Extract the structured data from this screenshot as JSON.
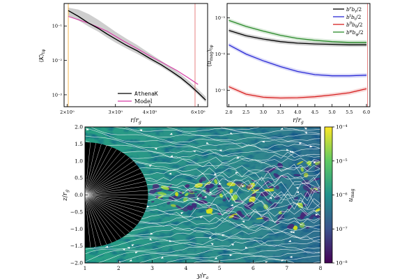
{
  "chart_data": [
    {
      "type": "line",
      "xlabel": "r/r_g",
      "ylabel": "⟨K⟩_{tφ}",
      "xscale": "log",
      "yscale": "log",
      "xlim": [
        1.95,
        6.5
      ],
      "ylim": [
        0.00045,
        0.45
      ],
      "xticks": [
        {
          "v": 2,
          "label": "2×10⁰"
        },
        {
          "v": 3,
          "label": "3×10⁰"
        },
        {
          "v": 4,
          "label": "4×10⁰"
        },
        {
          "v": 6,
          "label": "6×10⁰"
        }
      ],
      "yticks": [
        {
          "v": 0.1,
          "label": "10⁻¹"
        },
        {
          "v": 0.01,
          "label": "10⁻²"
        },
        {
          "v": 0.001,
          "label": "10⁻³"
        }
      ],
      "vlines": [
        {
          "x": 2.02,
          "color": "#f5a623"
        },
        {
          "x": 5.85,
          "color": "#e06060"
        }
      ],
      "legend_position": "bottom-left",
      "series": [
        {
          "name": "AthenaK",
          "color": "#000000",
          "label_style": "mono",
          "x": [
            2.02,
            2.2,
            2.4,
            2.6,
            2.8,
            3.0,
            3.3,
            3.6,
            4.0,
            4.4,
            4.8,
            5.2,
            5.6,
            6.0,
            6.4
          ],
          "y": [
            0.28,
            0.19,
            0.12,
            0.085,
            0.058,
            0.042,
            0.027,
            0.019,
            0.0115,
            0.0075,
            0.0048,
            0.0031,
            0.0019,
            0.00115,
            0.0007
          ],
          "band_lo": [
            0.2,
            0.145,
            0.095,
            0.068,
            0.046,
            0.033,
            0.022,
            0.0155,
            0.0098,
            0.0065,
            0.0042,
            0.0027,
            0.00165,
            0.001,
            0.0006
          ],
          "band_hi": [
            0.34,
            0.3,
            0.22,
            0.15,
            0.1,
            0.068,
            0.042,
            0.028,
            0.016,
            0.0098,
            0.0062,
            0.0039,
            0.0024,
            0.00145,
            0.00088
          ]
        },
        {
          "name": "Model",
          "color": "#d63aa5",
          "x": [
            2.02,
            2.4,
            2.8,
            3.2,
            3.6,
            4.0,
            4.5,
            5.0,
            5.5,
            6.0
          ],
          "y": [
            0.19,
            0.12,
            0.07,
            0.037,
            0.022,
            0.0135,
            0.0082,
            0.0052,
            0.0032,
            0.002
          ]
        }
      ]
    },
    {
      "type": "line",
      "xlabel": "r/r_g",
      "ylabel": "⟨u_mag⟩_{tφ}",
      "yscale": "log",
      "xlim": [
        1.95,
        6.1
      ],
      "ylim": [
        3.5e-06,
        0.0025
      ],
      "xticks": [
        {
          "v": 2.0,
          "label": "2.0"
        },
        {
          "v": 2.5,
          "label": "2.5"
        },
        {
          "v": 3.0,
          "label": "3.0"
        },
        {
          "v": 3.5,
          "label": "3.5"
        },
        {
          "v": 4.0,
          "label": "4.0"
        },
        {
          "v": 4.5,
          "label": "4.5"
        },
        {
          "v": 5.0,
          "label": "5.0"
        },
        {
          "v": 5.5,
          "label": "5.5"
        },
        {
          "v": 6.0,
          "label": "6.0"
        }
      ],
      "yticks": [
        {
          "v": 0.001,
          "label": "10⁻³"
        },
        {
          "v": 0.0001,
          "label": "10⁻⁴"
        },
        {
          "v": 1e-05,
          "label": "10⁻⁵"
        }
      ],
      "vlines": [
        {
          "x": 6.03,
          "color": "#e06060"
        }
      ],
      "legend_position": "top-right",
      "series": [
        {
          "name": "b^r b_r/2",
          "color": "#000000",
          "x": [
            2.0,
            2.5,
            3.0,
            3.5,
            4.0,
            4.5,
            5.0,
            5.5,
            6.0
          ],
          "y": [
            0.00045,
            0.00032,
            0.00026,
            0.00022,
            0.0002,
            0.00019,
            0.000185,
            0.00018,
            0.00018
          ]
        },
        {
          "name": "b^t b_t/2",
          "color": "#2b2bd6",
          "x": [
            2.0,
            2.5,
            3.0,
            3.5,
            4.0,
            4.5,
            5.0,
            5.5,
            6.0
          ],
          "y": [
            0.00018,
            0.0001,
            6.5e-05,
            4.5e-05,
            3.3e-05,
            2.7e-05,
            2.5e-05,
            2.5e-05,
            2.6e-05
          ]
        },
        {
          "name": "b^θ b_θ/2",
          "color": "#d62020",
          "x": [
            2.0,
            2.5,
            3.0,
            3.5,
            4.0,
            4.5,
            5.0,
            5.5,
            6.0
          ],
          "y": [
            1.25e-05,
            7.8e-06,
            6.4e-06,
            6.1e-06,
            6.2e-06,
            6.6e-06,
            7.4e-06,
            8.5e-06,
            1.1e-05
          ]
        },
        {
          "name": "b^φ b_φ/2",
          "color": "#2a8a2a",
          "x": [
            2.0,
            2.5,
            3.0,
            3.5,
            4.0,
            4.5,
            5.0,
            5.5,
            6.0
          ],
          "y": [
            0.00085,
            0.00058,
            0.00043,
            0.00033,
            0.00027,
            0.00024,
            0.00022,
            0.00021,
            0.00021
          ]
        }
      ]
    },
    {
      "type": "heatmap",
      "xlabel": "y/r_g",
      "ylabel": "z/r_g",
      "xlim": [
        1,
        8
      ],
      "ylim": [
        -2.0,
        2.0
      ],
      "xticks": [
        1,
        2,
        3,
        4,
        5,
        6,
        7,
        8
      ],
      "yticks": [
        {
          "v": -2.0,
          "label": "−2.0"
        },
        {
          "v": -1.5,
          "label": "−1.5"
        },
        {
          "v": -1.0,
          "label": "−1.0"
        },
        {
          "v": -0.5,
          "label": "−0.5"
        },
        {
          "v": 0.0,
          "label": "0.0"
        },
        {
          "v": 0.5,
          "label": "0.5"
        },
        {
          "v": 1.0,
          "label": "1.0"
        },
        {
          "v": 1.5,
          "label": "1.5"
        },
        {
          "v": 2.0,
          "label": "2.0"
        }
      ],
      "colorbar": {
        "label": "u_mag",
        "scale": "log",
        "range": [
          1e-08,
          0.0001
        ],
        "ticks": [
          {
            "v": -4,
            "label": "10⁻⁴"
          },
          {
            "v": -5,
            "label": "10⁻⁵"
          },
          {
            "v": -6,
            "label": "10⁻⁶"
          },
          {
            "v": -7,
            "label": "10⁻⁷"
          },
          {
            "v": -8,
            "label": "10⁻⁸"
          }
        ],
        "colormap": [
          "#440154",
          "#3b528b",
          "#21918c",
          "#5ec962",
          "#fde725"
        ]
      },
      "black_hole_radius": 2.0,
      "overlay": "magnetic field streamlines (white)"
    }
  ]
}
